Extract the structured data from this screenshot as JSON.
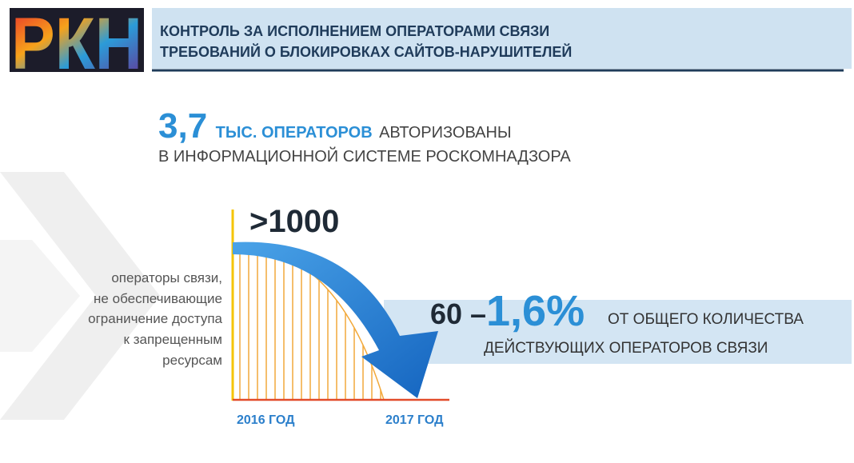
{
  "logo": "РКН",
  "header": {
    "lines": [
      "КОНТРОЛЬ ЗА ИСПОЛНЕНИЕМ ОПЕРАТОРАМИ СВЯЗИ",
      "ТРЕБОВАНИЙ О БЛОКИРОВКАХ САЙТОВ-НАРУШИТЕЛЕЙ"
    ]
  },
  "stat": {
    "number": "3,7",
    "unit": "ТЫС. ОПЕРАТОРОВ",
    "verb": "АВТОРИЗОВАНЫ",
    "line2": "В ИНФОРМАЦИОННОЙ СИСТЕМЕ РОСКОМНАДЗОРА"
  },
  "graphic": {
    "start_value": ">1000",
    "caption": [
      "операторы связи,",
      "не обеспечивающие",
      "ограничение доступа",
      "к запрещенным",
      "ресурсам"
    ],
    "x_labels": [
      "2016 ГОД",
      "2017 ГОД"
    ]
  },
  "result": {
    "count": "60 –",
    "percent": "1,6%",
    "line1": "ОТ ОБЩЕГО КОЛИЧЕСТВА",
    "line2": "ДЕЙСТВУЮЩИХ ОПЕРАТОРОВ СВЯЗИ"
  }
}
